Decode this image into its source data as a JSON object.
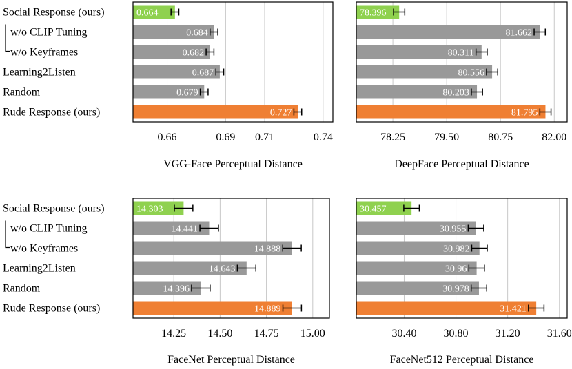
{
  "colors": {
    "social": "#8fd14f",
    "neutral": "#999999",
    "rude": "#ef7f33",
    "grid": "#c8c8c8",
    "frame": "#000000",
    "errorbar": "#000000",
    "value_text": "#ffffff"
  },
  "chart_data": [
    {
      "type": "bar",
      "orientation": "horizontal",
      "title": "",
      "xlabel": "VGG-Face Perceptual Distance",
      "categories": [
        "Social Response (ours)",
        "w/o CLIP Tuning",
        "w/o Keyframes",
        "Learning2Listen",
        "Random",
        "Rude Response (ours)"
      ],
      "values": [
        0.664,
        0.684,
        0.682,
        0.687,
        0.679,
        0.727
      ],
      "value_labels": [
        "0.664",
        "0.684",
        "0.682",
        "0.687",
        "0.679",
        "0.727"
      ],
      "errors": [
        0.002,
        0.002,
        0.002,
        0.002,
        0.002,
        0.002
      ],
      "bar_colors": [
        "social",
        "neutral",
        "neutral",
        "neutral",
        "neutral",
        "rude"
      ],
      "xlim": [
        0.6425,
        0.745
      ],
      "ticks": [
        0.66,
        0.69,
        0.71,
        0.74
      ],
      "tick_labels": [
        "0.66",
        "0.69",
        "0.71",
        "0.74"
      ],
      "grid": true
    },
    {
      "type": "bar",
      "orientation": "horizontal",
      "title": "",
      "xlabel": "DeepFace Perceptual Distance",
      "categories": [
        "Social Response (ours)",
        "w/o CLIP Tuning",
        "w/o Keyframes",
        "Learning2Listen",
        "Random",
        "Rude Response (ours)"
      ],
      "values": [
        78.396,
        81.662,
        80.311,
        80.556,
        80.203,
        81.795
      ],
      "value_labels": [
        "78.396",
        "81.662",
        "80.311",
        "80.556",
        "80.203",
        "81.795"
      ],
      "errors": [
        0.13,
        0.13,
        0.13,
        0.13,
        0.13,
        0.13
      ],
      "bar_colors": [
        "social",
        "neutral",
        "neutral",
        "neutral",
        "neutral",
        "rude"
      ],
      "xlim": [
        77.4,
        82.3
      ],
      "ticks": [
        78.25,
        79.5,
        80.75,
        82.0
      ],
      "tick_labels": [
        "78.25",
        "79.50",
        "80.75",
        "82.00"
      ],
      "grid": true
    },
    {
      "type": "bar",
      "orientation": "horizontal",
      "title": "",
      "xlabel": "FaceNet Perceptual Distance",
      "categories": [
        "Social Response (ours)",
        "w/o CLIP Tuning",
        "w/o Keyframes",
        "Learning2Listen",
        "Random",
        "Rude Response (ours)"
      ],
      "values": [
        14.303,
        14.441,
        14.888,
        14.643,
        14.396,
        14.889
      ],
      "value_labels": [
        "14.303",
        "14.441",
        "14.888",
        "14.643",
        "14.396",
        "14.889"
      ],
      "errors": [
        0.05,
        0.05,
        0.05,
        0.05,
        0.05,
        0.05
      ],
      "bar_colors": [
        "social",
        "neutral",
        "neutral",
        "neutral",
        "neutral",
        "rude"
      ],
      "xlim": [
        14.03,
        15.09
      ],
      "ticks": [
        14.25,
        14.5,
        14.75,
        15.0
      ],
      "tick_labels": [
        "14.25",
        "14.50",
        "14.75",
        "15.00"
      ],
      "grid": true
    },
    {
      "type": "bar",
      "orientation": "horizontal",
      "title": "",
      "xlabel": "FaceNet512 Perceptual Distance",
      "categories": [
        "Social Response (ours)",
        "w/o CLIP Tuning",
        "w/o Keyframes",
        "Learning2Listen",
        "Random",
        "Rude Response (ours)"
      ],
      "values": [
        30.457,
        30.955,
        30.982,
        30.96,
        30.978,
        31.421
      ],
      "value_labels": [
        "30.457",
        "30.955",
        "30.982",
        "30.96",
        "30.978",
        "31.421"
      ],
      "errors": [
        0.06,
        0.06,
        0.06,
        0.06,
        0.06,
        0.06
      ],
      "bar_colors": [
        "social",
        "neutral",
        "neutral",
        "neutral",
        "neutral",
        "rude"
      ],
      "xlim": [
        30.03,
        31.66
      ],
      "ticks": [
        30.4,
        30.8,
        31.2,
        31.6
      ],
      "tick_labels": [
        "30.40",
        "30.80",
        "31.20",
        "31.60"
      ],
      "grid": true
    }
  ]
}
